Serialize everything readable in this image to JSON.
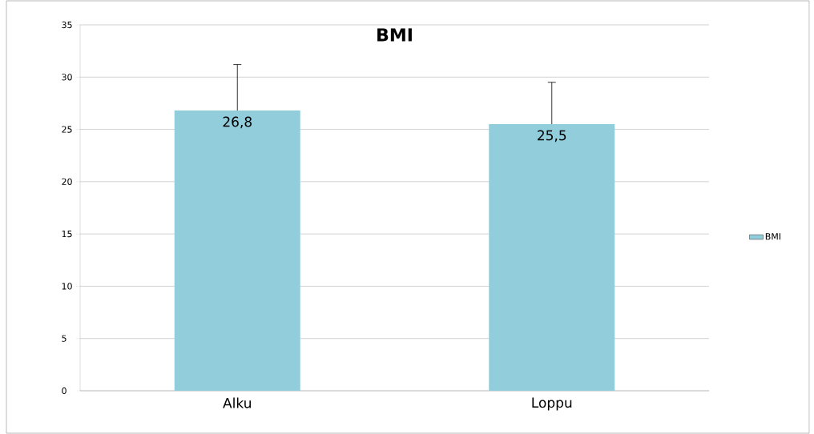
{
  "chart_data": {
    "type": "bar",
    "title": "BMI",
    "categories": [
      "Alku",
      "Loppu"
    ],
    "series": [
      {
        "name": "BMI",
        "color": "#92cddc",
        "values": [
          26.8,
          25.5
        ],
        "value_labels": [
          "26,8",
          "25,5"
        ],
        "errors": [
          [
            26.8,
            31.2
          ],
          [
            25.5,
            29.5
          ]
        ]
      }
    ],
    "ylim": [
      0,
      35
    ],
    "yticks": [
      0,
      5,
      10,
      15,
      20,
      25,
      30,
      35
    ],
    "grid": "y",
    "legend": "right"
  }
}
